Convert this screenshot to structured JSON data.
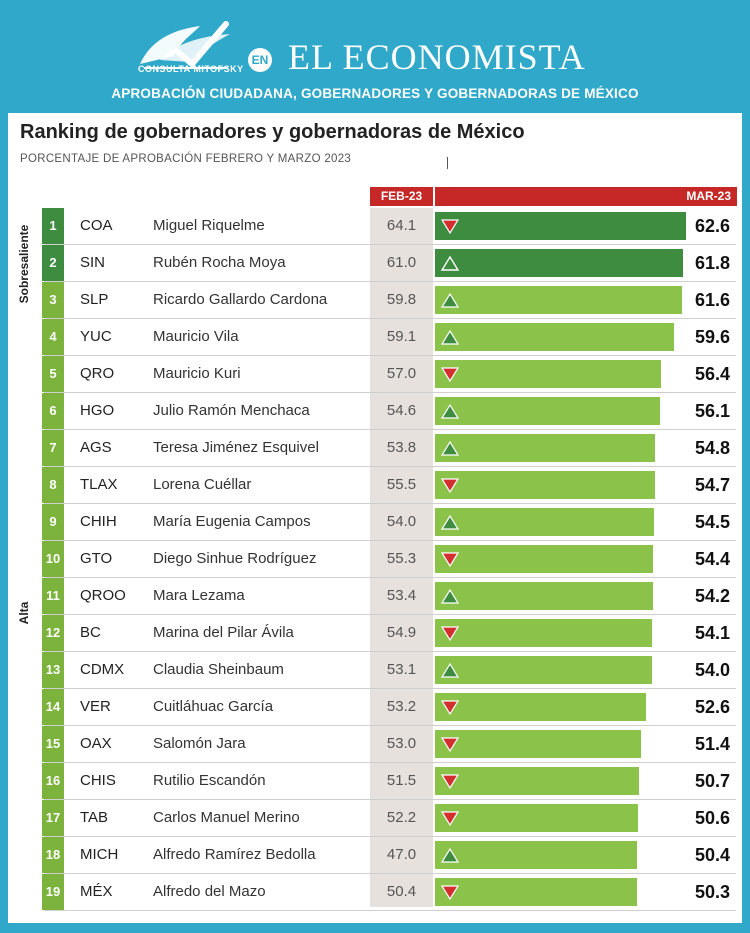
{
  "header": {
    "logo_text": "CONSULTA MITOFSKY",
    "en_label": "EN",
    "brand": "EL ECONOMISTA",
    "subtitle": "APROBACIÓN CIUDADANA, GOBERNADORES Y GOBERNADORAS DE MÉXICO"
  },
  "title": "Ranking de gobernadores y gobernadoras de México",
  "subtitle": "PORCENTAJE DE APROBACIÓN FEBRERO Y MARZO 2023",
  "columns": {
    "feb": "FEB-23",
    "mar": "MAR-23"
  },
  "categories": [
    {
      "label": "Sobresaliente",
      "from": 1,
      "to": 3
    },
    {
      "label": "Alta",
      "from": 4,
      "to": 19
    }
  ],
  "colors": {
    "dark_green": "#3d8c40",
    "light_green": "#8bc34a",
    "rank_light": "#7bb33d",
    "red": "#c62828",
    "up_arrow": "#3d8c40",
    "down_arrow": "#d32f2f"
  },
  "chart_data": {
    "type": "bar",
    "xlim": [
      0,
      63
    ],
    "rows": [
      {
        "rank": "1",
        "state": "COA",
        "name": "Miguel Riquelme",
        "feb": "64.1",
        "mar": "62.6",
        "value": 62.6,
        "trend": "down",
        "tier": "dark"
      },
      {
        "rank": "2",
        "state": "SIN",
        "name": "Rubén Rocha Moya",
        "feb": "61.0",
        "mar": "61.8",
        "value": 61.8,
        "trend": "up-open",
        "tier": "dark"
      },
      {
        "rank": "3",
        "state": "SLP",
        "name": "Ricardo Gallardo Cardona",
        "feb": "59.8",
        "mar": "61.6",
        "value": 61.6,
        "trend": "up",
        "tier": "light"
      },
      {
        "rank": "4",
        "state": "YUC",
        "name": "Mauricio Vila",
        "feb": "59.1",
        "mar": "59.6",
        "value": 59.6,
        "trend": "up",
        "tier": "light"
      },
      {
        "rank": "5",
        "state": "QRO",
        "name": "Mauricio Kuri",
        "feb": "57.0",
        "mar": "56.4",
        "value": 56.4,
        "trend": "down",
        "tier": "light"
      },
      {
        "rank": "6",
        "state": "HGO",
        "name": "Julio Ramón Menchaca",
        "feb": "54.6",
        "mar": "56.1",
        "value": 56.1,
        "trend": "up",
        "tier": "light"
      },
      {
        "rank": "7",
        "state": "AGS",
        "name": "Teresa Jiménez Esquivel",
        "feb": "53.8",
        "mar": "54.8",
        "value": 54.8,
        "trend": "up",
        "tier": "light"
      },
      {
        "rank": "8",
        "state": "TLAX",
        "name": "Lorena Cuéllar",
        "feb": "55.5",
        "mar": "54.7",
        "value": 54.7,
        "trend": "down",
        "tier": "light"
      },
      {
        "rank": "9",
        "state": "CHIH",
        "name": "María Eugenia Campos",
        "feb": "54.0",
        "mar": "54.5",
        "value": 54.5,
        "trend": "up",
        "tier": "light"
      },
      {
        "rank": "10",
        "state": "GTO",
        "name": "Diego Sinhue Rodríguez",
        "feb": "55.3",
        "mar": "54.4",
        "value": 54.4,
        "trend": "down",
        "tier": "light"
      },
      {
        "rank": "11",
        "state": "QROO",
        "name": "Mara Lezama",
        "feb": "53.4",
        "mar": "54.2",
        "value": 54.2,
        "trend": "up",
        "tier": "light"
      },
      {
        "rank": "12",
        "state": "BC",
        "name": "Marina del Pilar Ávila",
        "feb": "54.9",
        "mar": "54.1",
        "value": 54.1,
        "trend": "down",
        "tier": "light"
      },
      {
        "rank": "13",
        "state": "CDMX",
        "name": "Claudia Sheinbaum",
        "feb": "53.1",
        "mar": "54.0",
        "value": 54.0,
        "trend": "up",
        "tier": "light"
      },
      {
        "rank": "14",
        "state": "VER",
        "name": "Cuitláhuac García",
        "feb": "53.2",
        "mar": "52.6",
        "value": 52.6,
        "trend": "down",
        "tier": "light"
      },
      {
        "rank": "15",
        "state": "OAX",
        "name": "Salomón Jara",
        "feb": "53.0",
        "mar": "51.4",
        "value": 51.4,
        "trend": "down",
        "tier": "light"
      },
      {
        "rank": "16",
        "state": "CHIS",
        "name": "Rutilio Escandón",
        "feb": "51.5",
        "mar": "50.7",
        "value": 50.7,
        "trend": "down",
        "tier": "light"
      },
      {
        "rank": "17",
        "state": "TAB",
        "name": "Carlos Manuel Merino",
        "feb": "52.2",
        "mar": "50.6",
        "value": 50.6,
        "trend": "down",
        "tier": "light"
      },
      {
        "rank": "18",
        "state": "MICH",
        "name": "Alfredo Ramírez Bedolla",
        "feb": "47.0",
        "mar": "50.4",
        "value": 50.4,
        "trend": "up",
        "tier": "light"
      },
      {
        "rank": "19",
        "state": "MÉX",
        "name": "Alfredo del Mazo",
        "feb": "50.4",
        "mar": "50.3",
        "value": 50.3,
        "trend": "down",
        "tier": "light"
      }
    ]
  }
}
